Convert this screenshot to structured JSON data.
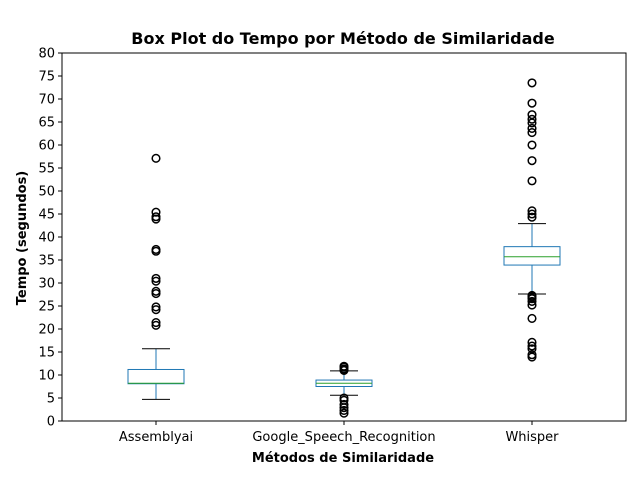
{
  "chart_data": {
    "type": "box",
    "title": "Box Plot do Tempo por Método de Similaridade",
    "xlabel": "Métodos de Similaridade",
    "ylabel": "Tempo (segundos)",
    "ylim": [
      0,
      80
    ],
    "yticks": [
      "0",
      "5",
      "10",
      "15",
      "20",
      "25",
      "30",
      "35",
      "40",
      "45",
      "50",
      "55",
      "60",
      "65",
      "70",
      "75",
      "80"
    ],
    "grid": false,
    "colors": {
      "box": "#1f77b4",
      "median": "#2ca02c",
      "whisker_cap": "#000000",
      "outlier": "#000000"
    },
    "categories": [
      "Assemblyai",
      "Google_Speech_Recognition",
      "Whisper"
    ],
    "boxes": [
      {
        "name": "Assemblyai",
        "whisker_low": 4.7,
        "q1": 8.1,
        "median": 8.2,
        "q3": 11.2,
        "whisker_high": 15.7,
        "outliers": [
          20.8,
          21.4,
          24.2,
          24.8,
          27.7,
          28.2,
          30.4,
          31.0,
          36.9,
          37.3,
          43.9,
          44.4,
          45.4,
          57.1
        ]
      },
      {
        "name": "Google_Speech_Recognition",
        "whisker_low": 5.6,
        "q1": 7.5,
        "median": 8.2,
        "q3": 8.9,
        "whisker_high": 10.9,
        "outliers": [
          1.7,
          2.3,
          2.9,
          3.6,
          4.5,
          5.0,
          11.0,
          11.3,
          11.7,
          11.9
        ]
      },
      {
        "name": "Whisper",
        "whisker_low": 27.6,
        "q1": 33.9,
        "median": 35.7,
        "q3": 37.9,
        "whisker_high": 42.9,
        "outliers": [
          13.9,
          14.4,
          15.7,
          16.3,
          17.1,
          22.3,
          25.2,
          26.0,
          26.6,
          27.0,
          27.3,
          44.3,
          45.0,
          45.7,
          52.2,
          56.6,
          60.0,
          62.7,
          63.6,
          64.8,
          65.6,
          66.6,
          69.1,
          73.5
        ]
      }
    ]
  }
}
